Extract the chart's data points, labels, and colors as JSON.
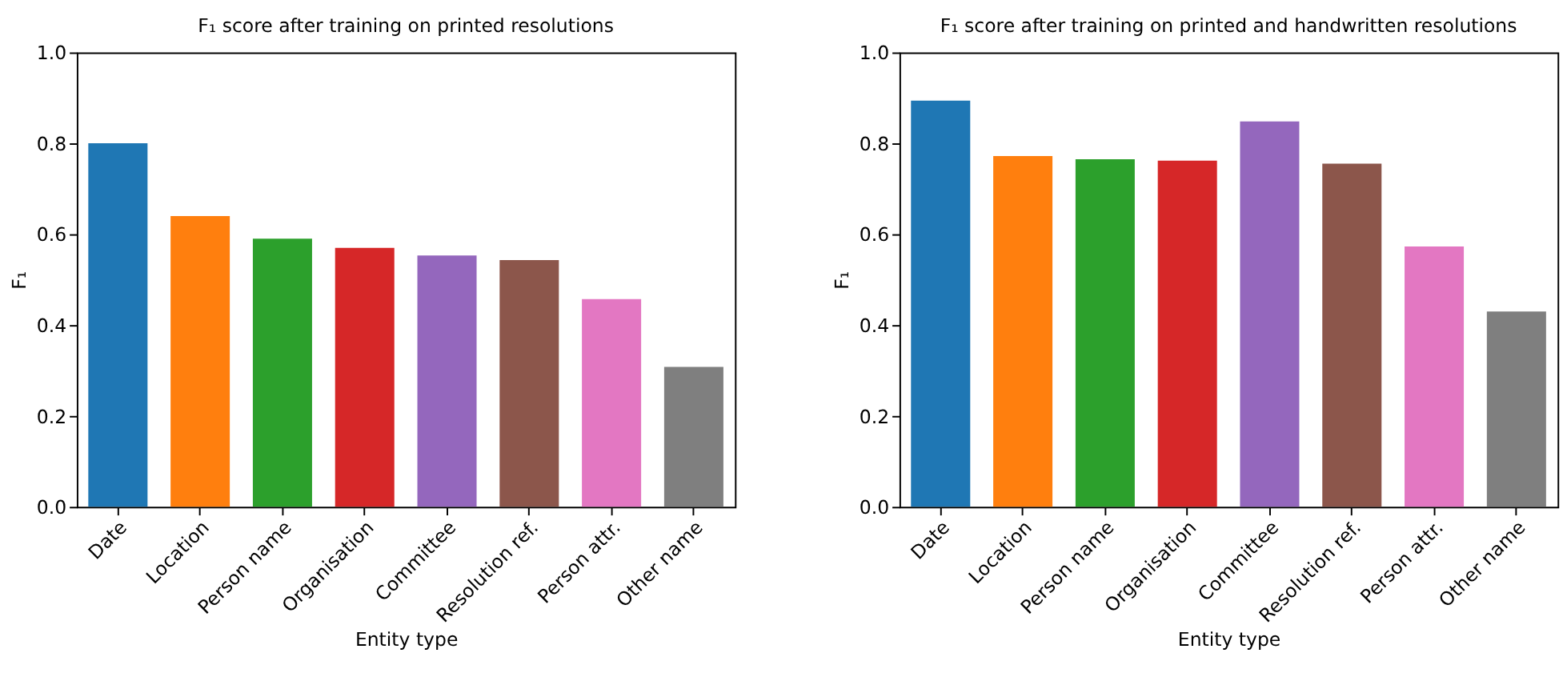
{
  "chart_data": [
    {
      "type": "bar",
      "title": "F₁ score after training on printed resolutions",
      "xlabel": "Entity type",
      "ylabel": "F₁",
      "categories": [
        "Date",
        "Location",
        "Person name",
        "Organisation",
        "Committee",
        "Resolution ref.",
        "Person attr.",
        "Other name"
      ],
      "values": [
        0.8,
        0.64,
        0.59,
        0.57,
        0.553,
        0.543,
        0.457,
        0.308
      ],
      "colors": [
        "#1f77b4",
        "#ff7f0e",
        "#2ca02c",
        "#d62728",
        "#9467bd",
        "#8c564b",
        "#e377c2",
        "#7f7f7f"
      ],
      "ylim": [
        0,
        1
      ],
      "yticks": [
        {
          "value": 0,
          "label": "0.0"
        },
        0.2,
        0.4,
        0.6,
        0.8,
        {
          "value": 1,
          "label": "1.0"
        }
      ],
      "grid": false
    },
    {
      "type": "bar",
      "title": "F₁ score after training on printed and handwritten resolutions",
      "xlabel": "Entity type",
      "ylabel": "F₁",
      "categories": [
        "Date",
        "Location",
        "Person name",
        "Organisation",
        "Committee",
        "Resolution ref.",
        "Person attr.",
        "Other name"
      ],
      "values": [
        0.894,
        0.772,
        0.765,
        0.762,
        0.848,
        0.755,
        0.573,
        0.43
      ],
      "colors": [
        "#1f77b4",
        "#ff7f0e",
        "#2ca02c",
        "#d62728",
        "#9467bd",
        "#8c564b",
        "#e377c2",
        "#7f7f7f"
      ],
      "ylim": [
        0,
        1
      ],
      "yticks": [
        {
          "value": 0,
          "label": "0.0"
        },
        0.2,
        0.4,
        0.6,
        0.8,
        {
          "value": 1,
          "label": "1.0"
        }
      ],
      "grid": false
    }
  ]
}
